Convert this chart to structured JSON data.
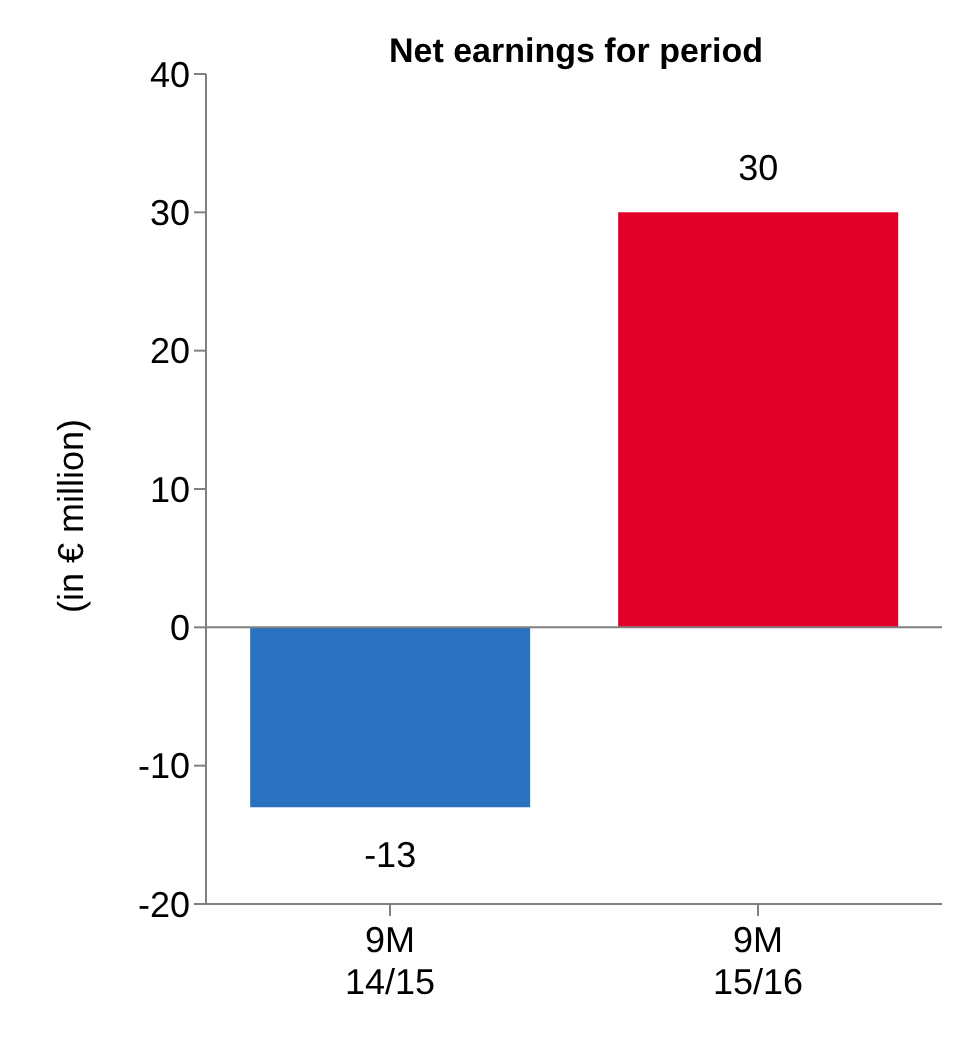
{
  "chart_data": {
    "type": "bar",
    "title": "Net earnings for period",
    "ylabel": "(in € million)",
    "categories": [
      "9M\n14/15",
      "9M\n15/16"
    ],
    "values": [
      -13,
      30
    ],
    "colors": [
      "#2a72c0",
      "#e2002a"
    ],
    "ylim": [
      -20,
      40
    ],
    "yticks": [
      -20,
      -10,
      0,
      10,
      20,
      30,
      40
    ],
    "ref_lines": [
      {
        "axis": "y",
        "value": 0,
        "color": "#808080"
      }
    ],
    "data_labels": true
  }
}
